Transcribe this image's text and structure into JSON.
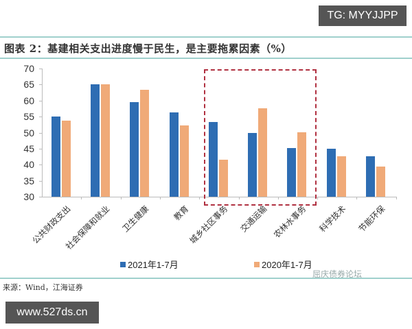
{
  "watermarks": {
    "top_right": "TG: MYYJJPP",
    "bottom_left": "www.527ds.cn"
  },
  "title": "图表 2：基建相关支出进度慢于民生，是主要拖累因素（%）",
  "source": "来源：Wind，江海证券",
  "brand": "屈庆债券论坛",
  "colors": {
    "series_2021": "#2e6db3",
    "series_2020": "#f0aa78",
    "highlight_box": "#b03040",
    "rule": "#9fd0cc"
  },
  "legend": [
    {
      "label": "2021年1-7月",
      "color": "#2e6db3"
    },
    {
      "label": "2020年1-7月",
      "color": "#f0aa78"
    }
  ],
  "chart_data": {
    "type": "bar",
    "title": "图表 2：基建相关支出进度慢于民生，是主要拖累因素（%）",
    "xlabel": "",
    "ylabel": "%",
    "ylim": [
      30,
      70
    ],
    "yticks": [
      30,
      35,
      40,
      45,
      50,
      55,
      60,
      65,
      70
    ],
    "grid": false,
    "legend_position": "bottom",
    "categories": [
      "公共财政支出",
      "社会保障和就业",
      "卫生健康",
      "教育",
      "城乡社区事务",
      "交通运输",
      "农林水事务",
      "科学技术",
      "节能环保"
    ],
    "series": [
      {
        "name": "2021年1-7月",
        "values": [
          55.1,
          65.0,
          59.6,
          56.3,
          53.4,
          49.8,
          45.2,
          44.9,
          42.6
        ]
      },
      {
        "name": "2020年1-7月",
        "values": [
          53.7,
          65.0,
          63.3,
          52.2,
          41.6,
          57.7,
          50.1,
          42.7,
          39.4
        ]
      }
    ],
    "annotations": [
      {
        "type": "dashed-box",
        "covers": [
          "城乡社区事务",
          "交通运输",
          "农林水事务"
        ]
      }
    ]
  }
}
